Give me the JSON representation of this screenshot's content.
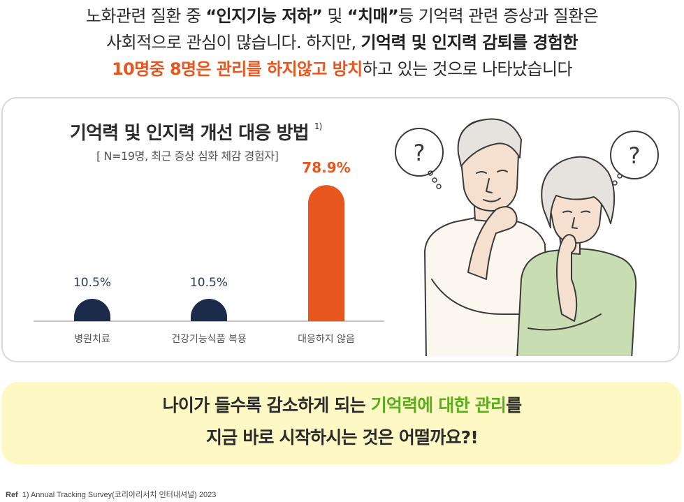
{
  "headline": {
    "line1_a": "노화관련 질환 중 ",
    "line1_b": "“인지기능 저하”",
    "line1_c": " 및 ",
    "line1_d": "“치매”",
    "line1_e": "등 기억력 관련 증상과 질환은",
    "line2_a": "사회적으로 관심이 많습니다. 하지만, ",
    "line2_b": "기억력 및 인지력 감퇴를 경험한",
    "line3_a": "10명중 8명은 관리를 하지않고 방치",
    "line3_b": "하고 있는 것으로 나타났습니다"
  },
  "chart_data": {
    "type": "bar",
    "title": "기억력 및 인지력 개선 대응 방법",
    "title_ref": "1)",
    "subtitle": "[ N=19명, 최근 증상 심화 체감 경험자]",
    "categories": [
      "병원치료",
      "건강기능식품 복용",
      "대응하지 않음"
    ],
    "values": [
      10.5,
      10.5,
      78.9
    ],
    "value_labels": [
      "10.5%",
      "10.5%",
      "78.9%"
    ],
    "colors": [
      "#1c2b4a",
      "#1c2b4a",
      "#e8561f"
    ],
    "ylim": [
      0,
      100
    ],
    "grid": false,
    "legend": "none"
  },
  "bottom": {
    "line1_a": "나이가 들수록 감소하게 되는 ",
    "line1_b": "기억력에 대한 관리",
    "line1_c": "를",
    "line2": "지금 바로 시작하시는 것은 어떨까요?!"
  },
  "illustration": {
    "bubble_mark": "?"
  },
  "ref": {
    "label": "Ref",
    "text": "1) Annual Tracking Survey(코리아리서치 인터내셔널) 2023"
  }
}
